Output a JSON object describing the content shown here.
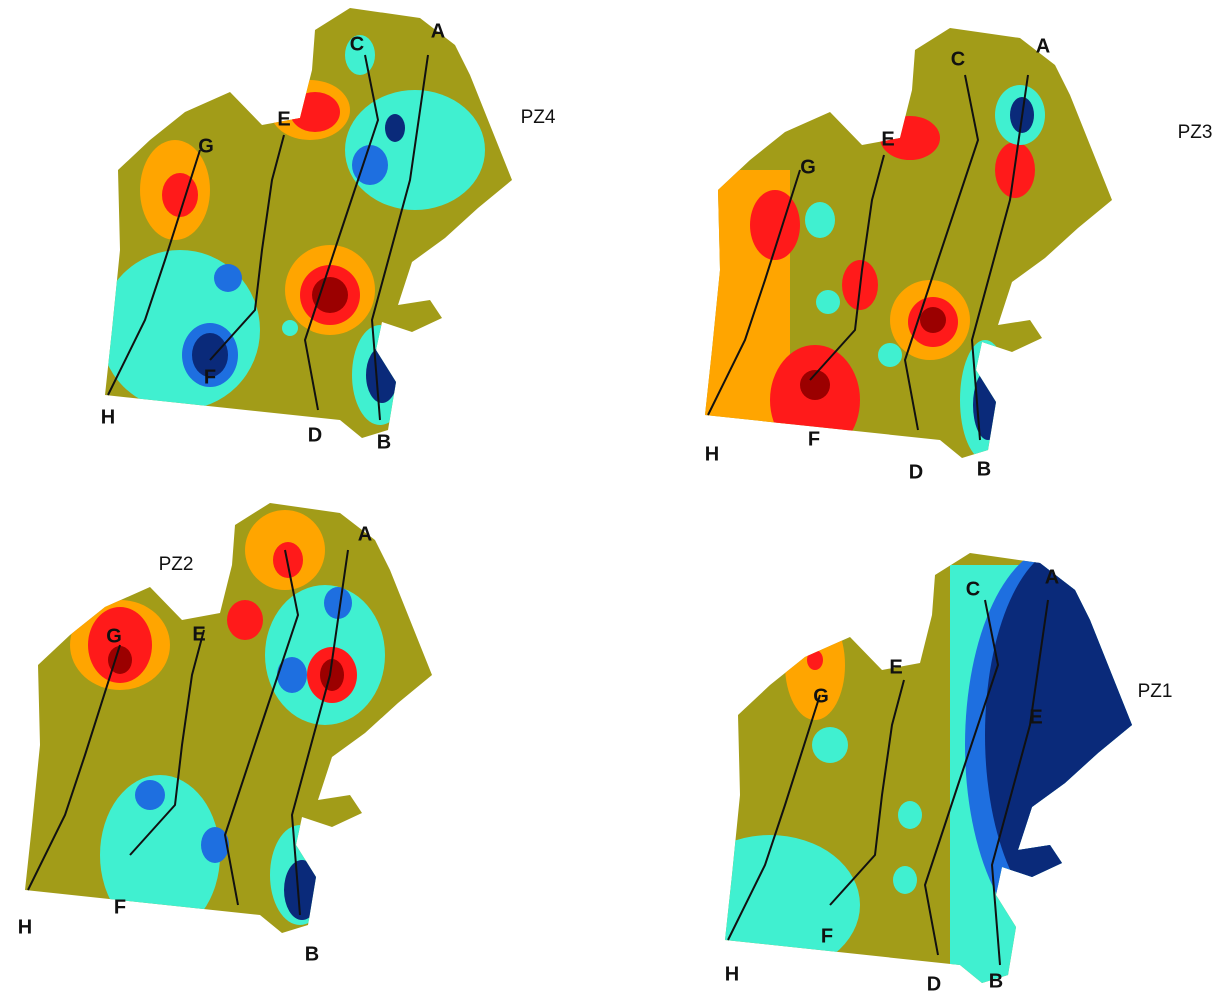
{
  "panels": [
    {
      "title": "PZ4",
      "labels": [
        "A",
        "B",
        "C",
        "D",
        "E",
        "F",
        "G",
        "H"
      ]
    },
    {
      "title": "PZ3",
      "labels": [
        "A",
        "B",
        "C",
        "D",
        "E",
        "F",
        "G",
        "H"
      ]
    },
    {
      "title": "PZ2",
      "labels": [
        "A",
        "B",
        "E",
        "F",
        "G",
        "H"
      ]
    },
    {
      "title": "PZ1",
      "labels": [
        "A",
        "B",
        "C",
        "D",
        "E",
        "F",
        "G",
        "H",
        "E"
      ]
    }
  ]
}
